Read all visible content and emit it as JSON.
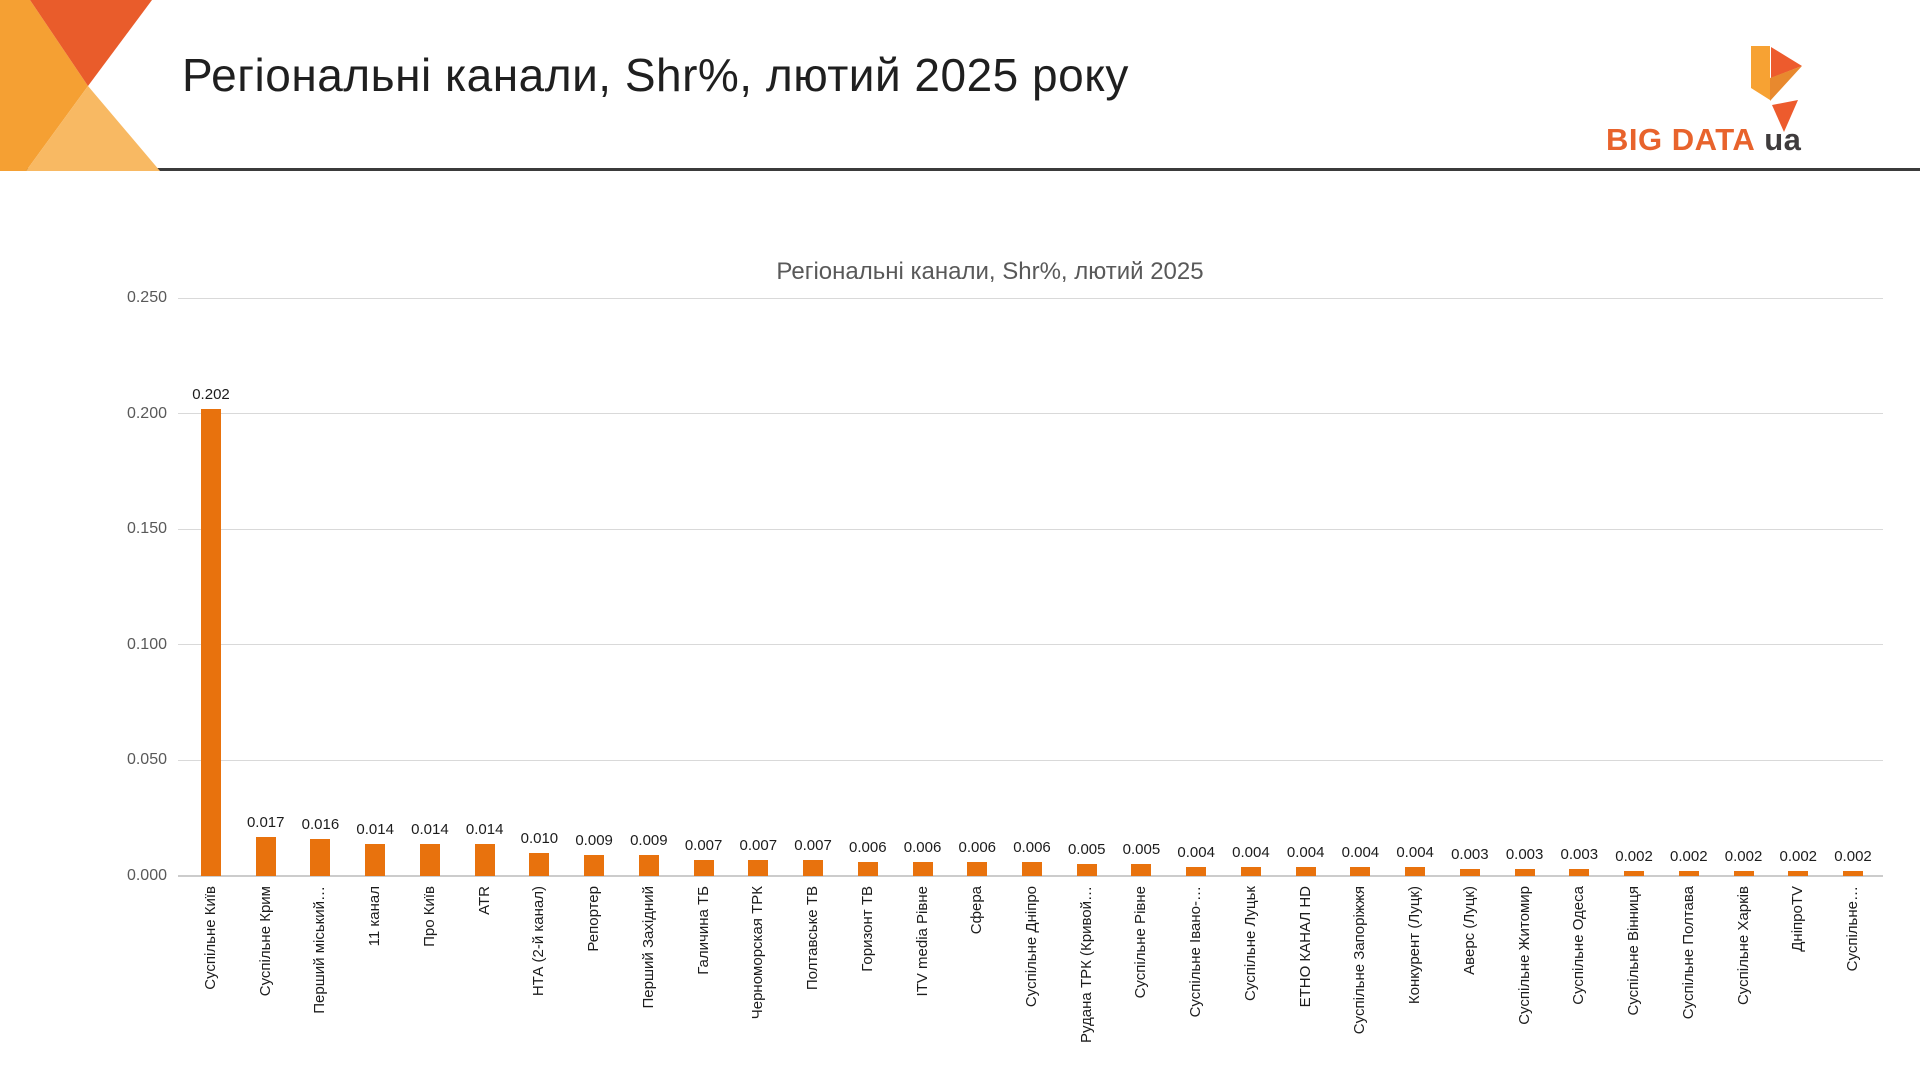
{
  "header": {
    "title": "Регіональні канали, Shr%, лютий 2025 року",
    "logo": {
      "brand": "BIG DATA",
      "suffix": "ua"
    }
  },
  "colors": {
    "bar": "#e8720d",
    "logo_brand": "#e8632c",
    "logo_suffix": "#3f3c3d",
    "deco_orange": "#f5a033",
    "deco_red": "#e95c2b",
    "deco_light": "#f8b963",
    "grid": "#d9d9d9",
    "axis_text": "#595959",
    "header_rule": "#3b3b3b"
  },
  "chart_data": {
    "type": "bar",
    "title": "Регіональні канали, Shr%, лютий 2025",
    "categories": [
      "Суспільне Київ",
      "Суспільне Крим",
      "Перший міський…",
      "11 канал",
      "Про Київ",
      "ATR",
      "НТА (2-й канал)",
      "Репортер",
      "Перший Західний",
      "Галичина ТБ",
      "Черноморская ТРК",
      "Полтавське ТВ",
      "Горизонт ТВ",
      "ITV media Рівне",
      "Сфера",
      "Суспільне Дніпро",
      "Рудана ТРК (Кривой…",
      "Суспільне Рівне",
      "Суспільне Івано-…",
      "Суспільне Луцьк",
      "ЕТНО КАНАЛ HD",
      "Суспільне Запоріжжя",
      "Конкурент (Луцк)",
      "Аверс (Луцк)",
      "Суспільне Житомир",
      "Суспільне Одеса",
      "Суспільне Вінниця",
      "Суспільне Полтава",
      "Суспільне Харків",
      "ДніпроTV",
      "Суспільне…"
    ],
    "values": [
      0.202,
      0.017,
      0.016,
      0.014,
      0.014,
      0.014,
      0.01,
      0.009,
      0.009,
      0.007,
      0.007,
      0.007,
      0.006,
      0.006,
      0.006,
      0.006,
      0.005,
      0.005,
      0.004,
      0.004,
      0.004,
      0.004,
      0.004,
      0.003,
      0.003,
      0.003,
      0.002,
      0.002,
      0.002,
      0.002,
      0.002
    ],
    "xlabel": "",
    "ylabel": "",
    "ylim": [
      0,
      0.25
    ],
    "yticks": [
      0.25,
      0.2,
      0.15,
      0.1,
      0.05,
      0.0
    ],
    "ytick_labels": [
      "0.250",
      "0.200",
      "0.150",
      "0.100",
      "0.050",
      "0.000"
    ],
    "grid": true,
    "legend": "none",
    "value_label_decimals": 3,
    "bar_color": "#e8720d"
  }
}
